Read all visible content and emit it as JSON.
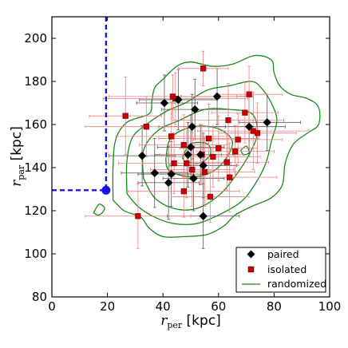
{
  "chart_data": {
    "type": "scatter",
    "xlabel": {
      "base": "r",
      "sub": "per",
      "unit": " [kpc]"
    },
    "ylabel": {
      "base": "r",
      "sub": "par",
      "unit": " [kpc]"
    },
    "xlim": [
      0,
      100
    ],
    "ylim": [
      80,
      210
    ],
    "xticks": [
      "0",
      "20",
      "40",
      "60",
      "80",
      "100"
    ],
    "yticks": [
      "80",
      "100",
      "120",
      "140",
      "160",
      "180",
      "200"
    ],
    "grid": false,
    "legend": {
      "placement": "lower-right",
      "entries": [
        {
          "label": "paired",
          "marker": "diamond",
          "color": "#000000"
        },
        {
          "label": "isolated",
          "marker": "square",
          "color": "#cc0000"
        },
        {
          "label": "randomized",
          "marker": "line",
          "color": "#1a8a1a"
        }
      ]
    },
    "reference_point": {
      "x": 19.5,
      "y": 129.5,
      "color": "#1414e6"
    },
    "series": [
      {
        "name": "paired",
        "marker": "diamond",
        "color": "#000000",
        "errcolor": "#555555",
        "points": [
          {
            "x": 40.5,
            "y": 170,
            "xerr": [
              10,
              12
            ],
            "yerr": [
              13,
              13
            ]
          },
          {
            "x": 45.5,
            "y": 171.5,
            "xerr": [
              14,
              14
            ],
            "yerr": [
              14,
              14
            ]
          },
          {
            "x": 51.5,
            "y": 167,
            "xerr": [
              12,
              12
            ],
            "yerr": [
              14,
              14
            ]
          },
          {
            "x": 59.5,
            "y": 173,
            "xerr": [
              13,
              13
            ],
            "yerr": [
              13,
              13
            ]
          },
          {
            "x": 71,
            "y": 159,
            "xerr": [
              13,
              13
            ],
            "yerr": [
              14,
              14
            ]
          },
          {
            "x": 77.5,
            "y": 161,
            "xerr": [
              10,
              12
            ],
            "yerr": [
              13,
              13
            ]
          },
          {
            "x": 50.5,
            "y": 159,
            "xerr": [
              12,
              12
            ],
            "yerr": [
              15,
              15
            ]
          },
          {
            "x": 32.5,
            "y": 145.5,
            "xerr": [
              12,
              12
            ],
            "yerr": [
              14,
              14
            ]
          },
          {
            "x": 49,
            "y": 146,
            "xerr": [
              12,
              12
            ],
            "yerr": [
              15,
              15
            ]
          },
          {
            "x": 50,
            "y": 149.5,
            "xerr": [
              12,
              12
            ],
            "yerr": [
              15,
              15
            ]
          },
          {
            "x": 53.5,
            "y": 146,
            "xerr": [
              12,
              12
            ],
            "yerr": [
              14,
              14
            ]
          },
          {
            "x": 54.5,
            "y": 141,
            "xerr": [
              12,
              12
            ],
            "yerr": [
              15,
              15
            ]
          },
          {
            "x": 37,
            "y": 137.5,
            "xerr": [
              12,
              12
            ],
            "yerr": [
              16,
              16
            ]
          },
          {
            "x": 43,
            "y": 137,
            "xerr": [
              12,
              12
            ],
            "yerr": [
              15,
              15
            ]
          },
          {
            "x": 51,
            "y": 135,
            "xerr": [
              11,
              11
            ],
            "yerr": [
              15,
              15
            ]
          },
          {
            "x": 42,
            "y": 133,
            "xerr": [
              11,
              11
            ],
            "yerr": [
              17,
              17
            ]
          },
          {
            "x": 54.5,
            "y": 117.5,
            "xerr": [
              13,
              13
            ],
            "yerr": [
              15,
              15
            ]
          }
        ]
      },
      {
        "name": "isolated",
        "marker": "square",
        "color": "#cc0000",
        "errcolor": "#ee8080",
        "points": [
          {
            "x": 54.5,
            "y": 186,
            "xerr": [
              9,
              9
            ],
            "yerr": [
              8,
              8
            ]
          },
          {
            "x": 43.5,
            "y": 173,
            "xerr": [
              23,
              23
            ],
            "yerr": [
              10,
              10
            ]
          },
          {
            "x": 44.5,
            "y": 172,
            "xerr": [
              26,
              26
            ],
            "yerr": [
              12,
              12
            ]
          },
          {
            "x": 26.5,
            "y": 164,
            "xerr": [
              13,
              13
            ],
            "yerr": [
              18,
              18
            ]
          },
          {
            "x": 71,
            "y": 174,
            "xerr": [
              12,
              12
            ],
            "yerr": [
              13,
              13
            ]
          },
          {
            "x": 63.5,
            "y": 162,
            "xerr": [
              20,
              20
            ],
            "yerr": [
              17,
              17
            ]
          },
          {
            "x": 69.5,
            "y": 165.5,
            "xerr": [
              12,
              12
            ],
            "yerr": [
              14,
              14
            ]
          },
          {
            "x": 34,
            "y": 159,
            "xerr": [
              22,
              22
            ],
            "yerr": [
              14,
              14
            ]
          },
          {
            "x": 72.5,
            "y": 157,
            "xerr": [
              20,
              20
            ],
            "yerr": [
              18,
              18
            ]
          },
          {
            "x": 74,
            "y": 156,
            "xerr": [
              14,
              14
            ],
            "yerr": [
              14,
              14
            ]
          },
          {
            "x": 43,
            "y": 154.5,
            "xerr": [
              20,
              20
            ],
            "yerr": [
              16,
              16
            ]
          },
          {
            "x": 56.5,
            "y": 153.5,
            "xerr": [
              18,
              18
            ],
            "yerr": [
              16,
              16
            ]
          },
          {
            "x": 67,
            "y": 153,
            "xerr": [
              16,
              16
            ],
            "yerr": [
              12,
              12
            ]
          },
          {
            "x": 47.5,
            "y": 150.5,
            "xerr": [
              16,
              16
            ],
            "yerr": [
              14,
              14
            ]
          },
          {
            "x": 60,
            "y": 149,
            "xerr": [
              14,
              14
            ],
            "yerr": [
              15,
              15
            ]
          },
          {
            "x": 66,
            "y": 147.5,
            "xerr": [
              14,
              14
            ],
            "yerr": [
              12,
              12
            ]
          },
          {
            "x": 54,
            "y": 146,
            "xerr": [
              15,
              15
            ],
            "yerr": [
              14,
              14
            ]
          },
          {
            "x": 44,
            "y": 142,
            "xerr": [
              20,
              20
            ],
            "yerr": [
              14,
              14
            ]
          },
          {
            "x": 48.5,
            "y": 142,
            "xerr": [
              16,
              16
            ],
            "yerr": [
              16,
              16
            ]
          },
          {
            "x": 58,
            "y": 145,
            "xerr": [
              17,
              17
            ],
            "yerr": [
              14,
              14
            ]
          },
          {
            "x": 63,
            "y": 142.5,
            "xerr": [
              15,
              15
            ],
            "yerr": [
              13,
              13
            ]
          },
          {
            "x": 50.5,
            "y": 139,
            "xerr": [
              15,
              15
            ],
            "yerr": [
              17,
              17
            ]
          },
          {
            "x": 55,
            "y": 138,
            "xerr": [
              18,
              18
            ],
            "yerr": [
              16,
              16
            ]
          },
          {
            "x": 64,
            "y": 135.5,
            "xerr": [
              17,
              17
            ],
            "yerr": [
              16,
              16
            ]
          },
          {
            "x": 47.5,
            "y": 129,
            "xerr": [
              20,
              20
            ],
            "yerr": [
              12,
              12
            ]
          },
          {
            "x": 57,
            "y": 126.5,
            "xerr": [
              14,
              14
            ],
            "yerr": [
              12,
              12
            ]
          },
          {
            "x": 31,
            "y": 117.5,
            "xerr": [
              19,
              19
            ],
            "yerr": [
              15,
              15
            ]
          }
        ]
      }
    ],
    "randomized_contours": [
      [
        [
          22,
          125
        ],
        [
          22,
          140
        ],
        [
          23,
          153
        ],
        [
          27,
          161
        ],
        [
          35,
          165
        ],
        [
          36,
          171
        ],
        [
          37,
          177
        ],
        [
          40,
          181
        ],
        [
          45,
          187
        ],
        [
          50,
          189
        ],
        [
          58,
          187
        ],
        [
          65,
          188
        ],
        [
          73,
          192
        ],
        [
          79,
          190
        ],
        [
          80,
          184
        ],
        [
          82,
          178
        ],
        [
          86,
          174
        ],
        [
          92,
          172
        ],
        [
          96,
          168
        ],
        [
          96,
          160
        ],
        [
          92,
          156
        ],
        [
          87,
          151
        ],
        [
          84,
          142
        ],
        [
          83,
          132
        ],
        [
          79,
          126
        ],
        [
          72,
          122
        ],
        [
          66,
          118
        ],
        [
          62,
          113
        ],
        [
          56,
          109
        ],
        [
          48,
          108
        ],
        [
          40,
          108
        ],
        [
          35,
          112
        ],
        [
          32,
          117
        ],
        [
          26,
          120
        ],
        [
          22,
          125
        ]
      ],
      [
        [
          27,
          128
        ],
        [
          27,
          143
        ],
        [
          29,
          154
        ],
        [
          34,
          160
        ],
        [
          41,
          166
        ],
        [
          48,
          170
        ],
        [
          56,
          176
        ],
        [
          64,
          178
        ],
        [
          72,
          180
        ],
        [
          76,
          176
        ],
        [
          79,
          170
        ],
        [
          81,
          162
        ],
        [
          79,
          152
        ],
        [
          77,
          142
        ],
        [
          73,
          132
        ],
        [
          68,
          124
        ],
        [
          60,
          118
        ],
        [
          52,
          114
        ],
        [
          44,
          114
        ],
        [
          37,
          117
        ],
        [
          31,
          122
        ],
        [
          27,
          128
        ]
      ],
      [
        [
          33,
          135
        ],
        [
          33,
          148
        ],
        [
          38,
          157
        ],
        [
          46,
          162
        ],
        [
          55,
          167
        ],
        [
          64,
          167
        ],
        [
          72,
          165
        ],
        [
          74,
          156
        ],
        [
          71,
          146
        ],
        [
          66,
          136
        ],
        [
          60,
          127
        ],
        [
          52,
          121
        ],
        [
          44,
          121
        ],
        [
          37,
          126
        ],
        [
          33,
          135
        ]
      ],
      [
        [
          41,
          144
        ],
        [
          43,
          154
        ],
        [
          51,
          159
        ],
        [
          60,
          158
        ],
        [
          65,
          152
        ],
        [
          62,
          143
        ],
        [
          56,
          137
        ],
        [
          48,
          136
        ],
        [
          42,
          139
        ],
        [
          41,
          144
        ]
      ],
      [
        [
          47,
          145
        ],
        [
          50,
          151
        ],
        [
          56,
          151
        ],
        [
          57,
          146
        ],
        [
          53,
          142
        ],
        [
          48,
          143
        ],
        [
          47,
          145
        ]
      ],
      [
        [
          15,
          119
        ],
        [
          17,
          123
        ],
        [
          19,
          121
        ],
        [
          17,
          118
        ],
        [
          15,
          119
        ]
      ],
      [
        [
          68,
          148
        ],
        [
          70,
          150
        ],
        [
          71,
          147
        ],
        [
          69,
          146
        ],
        [
          68,
          148
        ]
      ]
    ]
  }
}
